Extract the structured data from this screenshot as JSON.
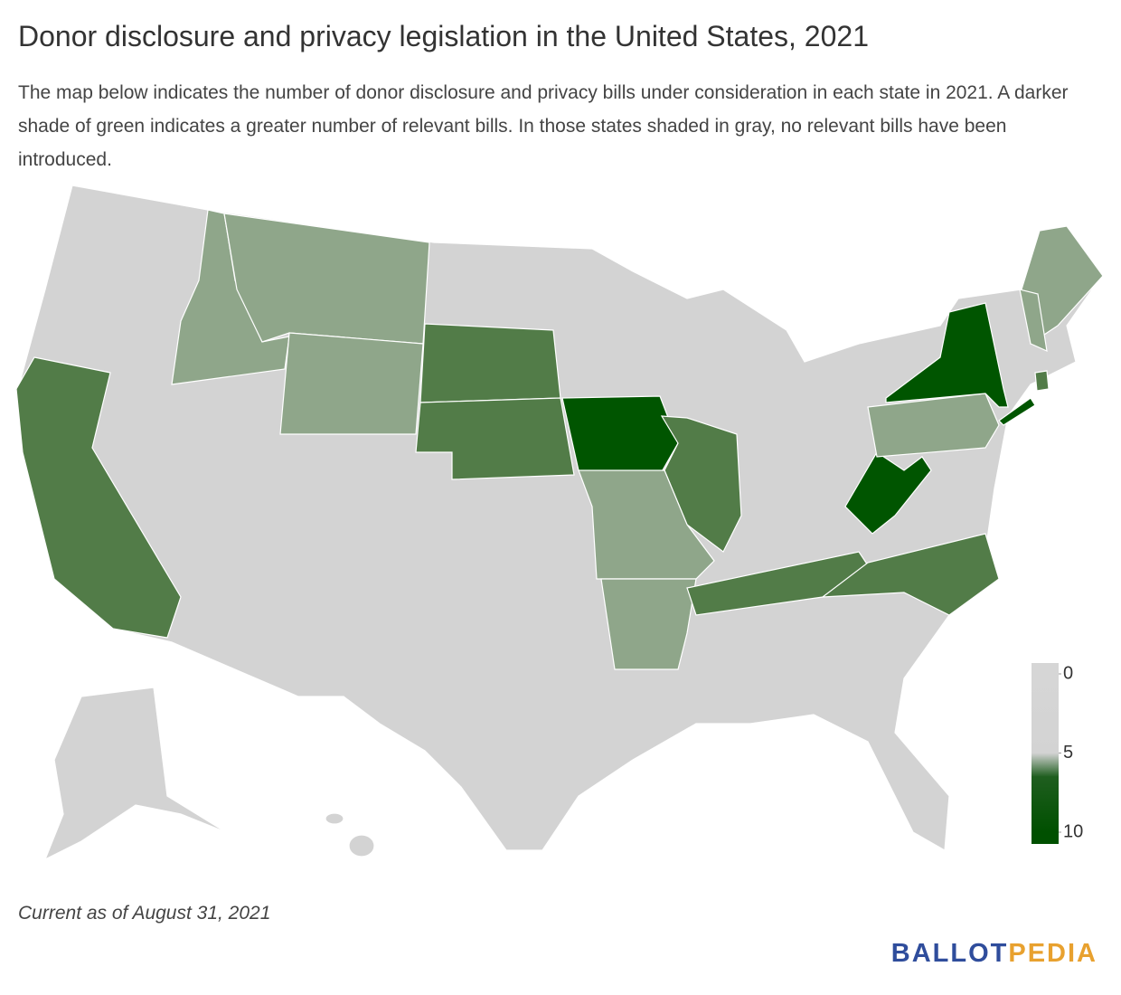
{
  "header": {
    "title": "Donor disclosure and privacy legislation in the United States, 2021",
    "subtitle": "The map below indicates the number of donor disclosure and privacy bills under consideration in each state in 2021. A darker shade of green indicates a greater number of relevant bills. In those states shaded in gray, no relevant bills have been introduced."
  },
  "legend": {
    "lim": [
      0,
      10
    ],
    "ticks": [
      0,
      5,
      10
    ],
    "color_stops": [
      {
        "value": 0,
        "color": "#d6d6d6"
      },
      {
        "value": 5,
        "color": "#d3d3d3"
      },
      {
        "value": 6.5,
        "color": "#1f5e1f"
      },
      {
        "value": 10,
        "color": "#005000"
      }
    ]
  },
  "footer": {
    "note": "Current as of August 31, 2021",
    "logo": {
      "part1": "BALLOT",
      "part2": "PEDIA"
    }
  }
}
